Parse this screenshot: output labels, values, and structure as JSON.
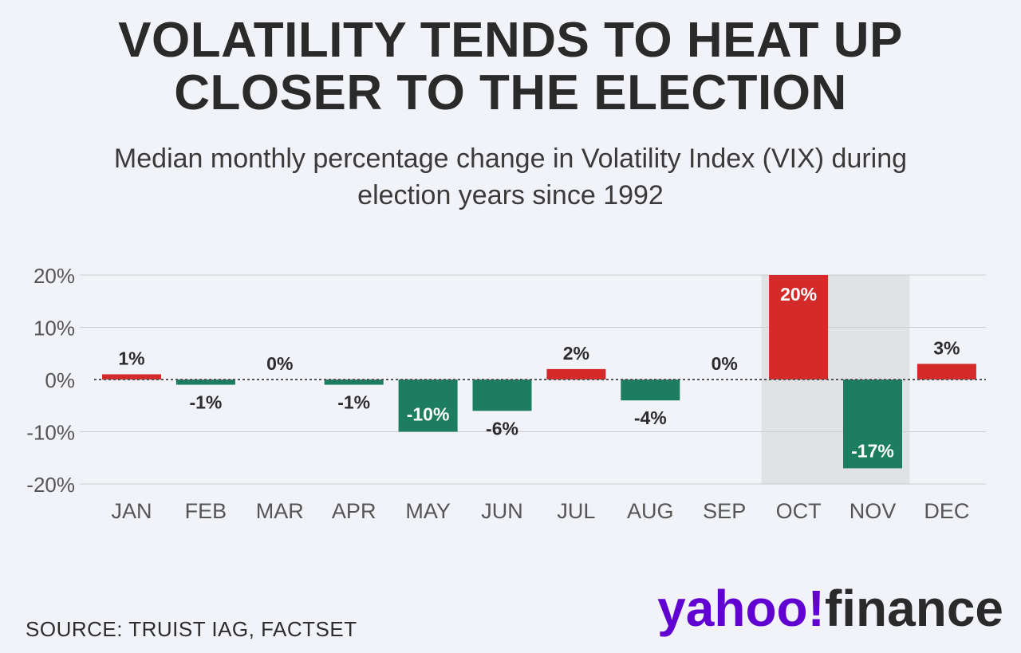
{
  "title_line1": "VOLATILITY TENDS TO HEAT UP",
  "title_line2": "CLOSER TO THE ELECTION",
  "subtitle_line1": "Median monthly percentage change in Volatility Index (VIX) during",
  "subtitle_line2": "election years since 1992",
  "source": "SOURCE: TRUIST IAG, FACTSET",
  "brand": {
    "part1": "yahoo",
    "mark": "!",
    "part2": "finance"
  },
  "colors": {
    "positive": "#d42a2a",
    "negative": "#1c7d5f",
    "highlight": "#e1e2e6",
    "grid": "#cccccc",
    "zero_line": "#555555"
  },
  "chart_data": {
    "type": "bar",
    "categories": [
      "JAN",
      "FEB",
      "MAR",
      "APR",
      "MAY",
      "JUN",
      "JUL",
      "AUG",
      "SEP",
      "OCT",
      "NOV",
      "DEC"
    ],
    "values": [
      1,
      -1,
      0,
      -1,
      -10,
      -6,
      2,
      -4,
      0,
      20,
      -17,
      3
    ],
    "data_labels": [
      "1%",
      "-1%",
      "0%",
      "-1%",
      "-10%",
      "-6%",
      "2%",
      "-4%",
      "0%",
      "20%",
      "-17%",
      "3%"
    ],
    "y_ticks": [
      20,
      10,
      0,
      -10,
      -20
    ],
    "y_tick_labels": [
      "20%",
      "10%",
      "0%",
      "-10%",
      "-20%"
    ],
    "ylim": [
      -20,
      20
    ],
    "highlight_categories": [
      "OCT",
      "NOV"
    ],
    "grid": true,
    "xlabel": "",
    "ylabel": ""
  }
}
